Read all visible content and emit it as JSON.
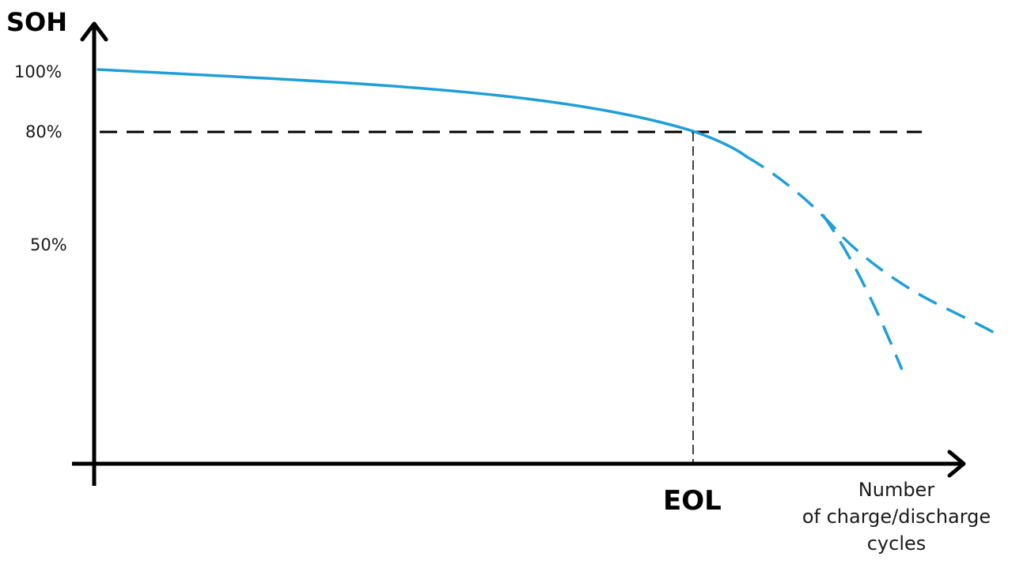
{
  "y_axis": {
    "title": "SOH",
    "ticks": [
      "100%",
      "80%",
      "50%"
    ]
  },
  "x_axis": {
    "marker": "EOL",
    "title_lines": [
      "Number",
      "of charge/discharge",
      "cycles"
    ]
  },
  "colors": {
    "curve": "#1e9fd8",
    "axis": "#000000",
    "threshold": "#000000"
  }
}
